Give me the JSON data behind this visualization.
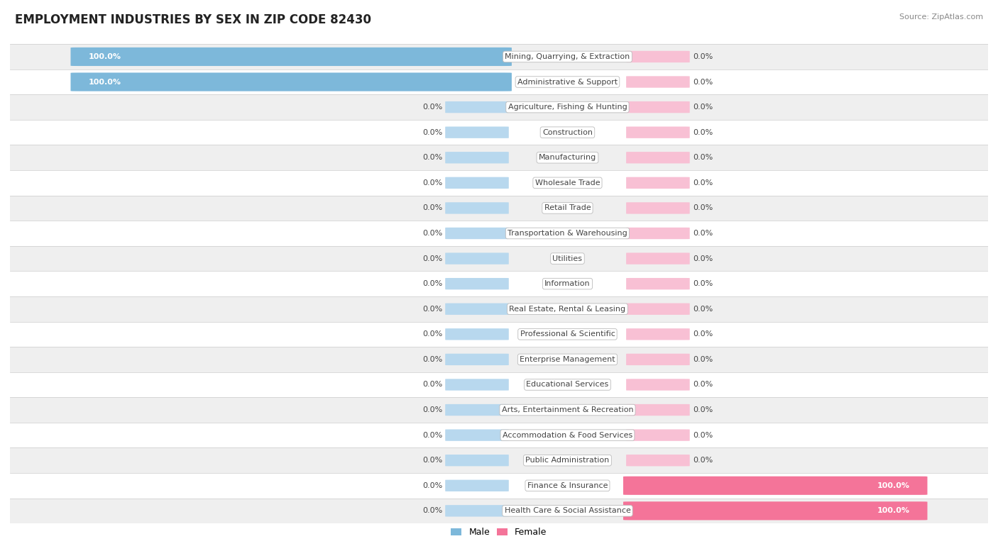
{
  "title": "EMPLOYMENT INDUSTRIES BY SEX IN ZIP CODE 82430",
  "source": "Source: ZipAtlas.com",
  "categories": [
    "Mining, Quarrying, & Extraction",
    "Administrative & Support",
    "Agriculture, Fishing & Hunting",
    "Construction",
    "Manufacturing",
    "Wholesale Trade",
    "Retail Trade",
    "Transportation & Warehousing",
    "Utilities",
    "Information",
    "Real Estate, Rental & Leasing",
    "Professional & Scientific",
    "Enterprise Management",
    "Educational Services",
    "Arts, Entertainment & Recreation",
    "Accommodation & Food Services",
    "Public Administration",
    "Finance & Insurance",
    "Health Care & Social Assistance"
  ],
  "male_values": [
    100.0,
    100.0,
    0.0,
    0.0,
    0.0,
    0.0,
    0.0,
    0.0,
    0.0,
    0.0,
    0.0,
    0.0,
    0.0,
    0.0,
    0.0,
    0.0,
    0.0,
    0.0,
    0.0
  ],
  "female_values": [
    0.0,
    0.0,
    0.0,
    0.0,
    0.0,
    0.0,
    0.0,
    0.0,
    0.0,
    0.0,
    0.0,
    0.0,
    0.0,
    0.0,
    0.0,
    0.0,
    0.0,
    100.0,
    100.0
  ],
  "male_color": "#7DB8DA",
  "female_color": "#F47499",
  "male_placeholder_color": "#B8D8EE",
  "female_placeholder_color": "#F8C0D4",
  "row_bg_light": "#EFEFEF",
  "row_bg_white": "#FFFFFF",
  "border_color": "#DDDDDD",
  "text_color": "#444444",
  "title_fontsize": 12,
  "label_fontsize": 8,
  "value_fontsize": 8,
  "source_fontsize": 8
}
